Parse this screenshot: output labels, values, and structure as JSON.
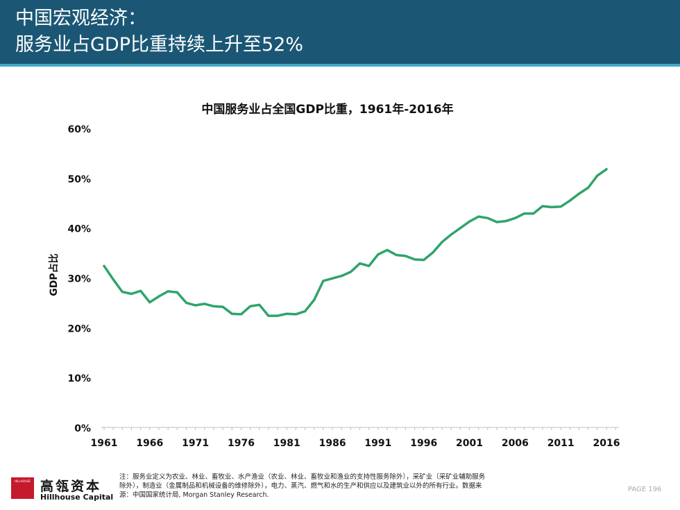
{
  "header": {
    "line1": "中国宏观经济：",
    "line2": "服务业占GDP比重持续上升至52%"
  },
  "colors": {
    "header_bg": "#1b5775",
    "header_rule": "#3fa9c9",
    "line": "#2fa46a",
    "logo": "#c41a2b"
  },
  "chart_data": {
    "type": "line",
    "title": "中国服务业占全国GDP比重，1961年-2016年",
    "xlabel": "",
    "ylabel": "GDP占比",
    "ylim": [
      0,
      60
    ],
    "yticks": [
      "0%",
      "10%",
      "20%",
      "30%",
      "40%",
      "50%",
      "60%"
    ],
    "xticks": [
      "1961",
      "1966",
      "1971",
      "1976",
      "1981",
      "1986",
      "1991",
      "1996",
      "2001",
      "2006",
      "2011",
      "2016"
    ],
    "grid": false,
    "legend": "none",
    "series": [
      {
        "x": [
          1961,
          1962,
          1963,
          1964,
          1965,
          1966,
          1967,
          1968,
          1969,
          1970,
          1971,
          1972,
          1973,
          1974,
          1975,
          1976,
          1977,
          1978,
          1979,
          1980,
          1981,
          1982,
          1983,
          1984,
          1985,
          1986,
          1987,
          1988,
          1989,
          1990,
          1991,
          1992,
          1993,
          1994,
          1995,
          1996,
          1997,
          1998,
          1999,
          2000,
          2001,
          2002,
          2003,
          2004,
          2005,
          2006,
          2007,
          2008,
          2009,
          2010,
          2011,
          2012,
          2013,
          2014,
          2015,
          2016
        ],
        "values": [
          32.4,
          29.7,
          27.2,
          26.8,
          27.4,
          25.1,
          26.3,
          27.3,
          27.1,
          25.0,
          24.5,
          24.8,
          24.3,
          24.2,
          22.8,
          22.7,
          24.3,
          24.6,
          22.4,
          22.4,
          22.8,
          22.7,
          23.3,
          25.6,
          29.4,
          29.9,
          30.4,
          31.2,
          32.9,
          32.4,
          34.7,
          35.6,
          34.6,
          34.4,
          33.7,
          33.6,
          35.1,
          37.2,
          38.7,
          40.0,
          41.3,
          42.3,
          42.0,
          41.2,
          41.4,
          42.0,
          42.9,
          42.9,
          44.4,
          44.2,
          44.3,
          45.5,
          46.9,
          48.1,
          50.5,
          51.8
        ]
      }
    ]
  },
  "footnote": {
    "line1": "注：服务业定义为农业、林业、畜牧业、水产渔业（农业、林业、畜牧业和渔业的支持性服务除外），采矿业（采矿业辅助服务",
    "line2": "除外），制造业（金属制品和机械设备的维修除外），电力、蒸汽、燃气和水的生产和供应以及建筑业以外的所有行业。数据来",
    "line3": "源：中国国家统计局, Morgan Stanley Research."
  },
  "logo": {
    "mark_text": "HILLHOUSE",
    "cn": "高瓴资本",
    "en": "Hillhouse Capital"
  },
  "page": "PAGE 196"
}
